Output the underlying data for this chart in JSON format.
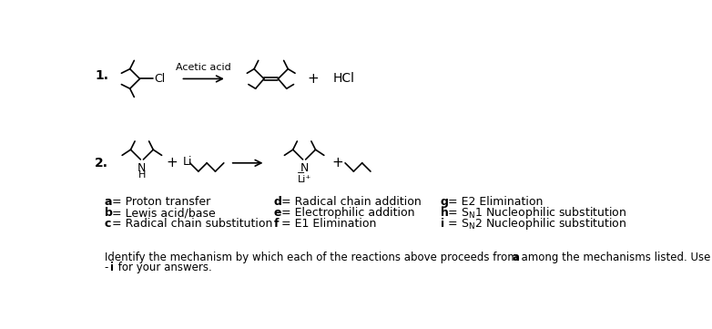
{
  "background_color": "#ffffff",
  "reaction1_label": "1.",
  "reaction2_label": "2.",
  "acetic_acid_label": "Acetic acid",
  "hcl_label": "HCl",
  "n_label": "N",
  "h_label": "H",
  "li_label": "Li",
  "col1_mechanisms": [
    [
      "a",
      " = Proton transfer"
    ],
    [
      "b",
      " = Lewis acid/base"
    ],
    [
      "c",
      " = Radical chain substitution"
    ]
  ],
  "col2_mechanisms": [
    [
      "d",
      " = Radical chain addition"
    ],
    [
      "e",
      " = Electrophilic addition"
    ],
    [
      "f",
      " = E1 Elimination"
    ]
  ],
  "col3_mechanisms": [
    [
      "g",
      " = E2 Elimination"
    ],
    [
      "h",
      " = S",
      "N",
      "1 Nucleophilic substitution"
    ],
    [
      "i",
      " = S",
      "N",
      "2 Nucleophilic substitution"
    ]
  ],
  "bottom_line1": "Identify the mechanism by which each of the reactions above proceeds from among the mechanisms listed. Use the letters ",
  "bottom_bold1": "a",
  "bottom_line2": "- ",
  "bottom_bold2": "i",
  "bottom_line3": " for your answers."
}
